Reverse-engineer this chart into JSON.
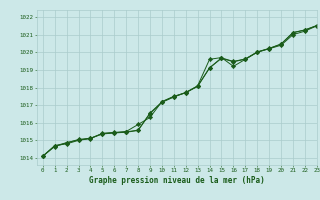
{
  "title": "Graphe pression niveau de la mer (hPa)",
  "background_color": "#cce8e8",
  "plot_bg_color": "#cce8e8",
  "grid_color": "#aacccc",
  "line_color": "#1a5c1a",
  "marker_color": "#1a5c1a",
  "xlim": [
    -0.5,
    23
  ],
  "ylim": [
    1013.6,
    1022.4
  ],
  "xticks": [
    0,
    1,
    2,
    3,
    4,
    5,
    6,
    7,
    8,
    9,
    10,
    11,
    12,
    13,
    14,
    15,
    16,
    17,
    18,
    19,
    20,
    21,
    22,
    23
  ],
  "yticks": [
    1014,
    1015,
    1016,
    1017,
    1018,
    1019,
    1020,
    1021,
    1022
  ],
  "series1": [
    1014.1,
    1014.7,
    1014.8,
    1015.0,
    1015.1,
    1015.4,
    1015.45,
    1015.5,
    1015.9,
    1016.3,
    1017.2,
    1017.5,
    1017.7,
    1018.1,
    1019.6,
    1019.7,
    1019.2,
    1019.6,
    1020.0,
    1020.2,
    1020.4,
    1021.0,
    1021.2,
    1021.5
  ],
  "series2": [
    1014.1,
    1014.65,
    1014.85,
    1015.05,
    1015.12,
    1015.38,
    1015.43,
    1015.48,
    1015.58,
    1016.55,
    1017.18,
    1017.48,
    1017.72,
    1018.08,
    1019.12,
    1019.68,
    1019.48,
    1019.62,
    1020.02,
    1020.22,
    1020.47,
    1021.12,
    1021.27,
    1021.52
  ],
  "series3": [
    1014.1,
    1014.68,
    1014.87,
    1015.02,
    1015.11,
    1015.36,
    1015.42,
    1015.46,
    1015.56,
    1016.52,
    1017.16,
    1017.46,
    1017.71,
    1018.06,
    1019.11,
    1019.66,
    1019.46,
    1019.61,
    1020.01,
    1020.21,
    1020.46,
    1021.11,
    1021.26,
    1021.51
  ],
  "ylabel_fontsize": 5,
  "xlabel_fontsize": 5.5,
  "tick_fontsize": 4.2
}
